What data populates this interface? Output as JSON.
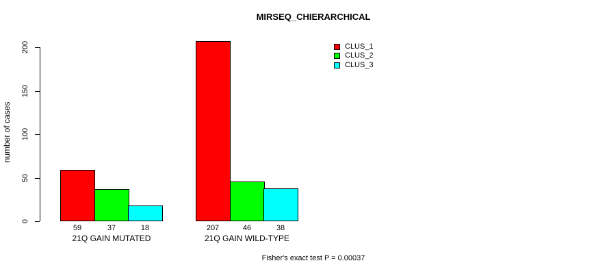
{
  "chart_data": {
    "type": "bar",
    "title": "MIRSEQ_CHIERARCHICAL",
    "xlabel": "",
    "ylabel": "number of cases",
    "ylim": [
      0,
      200
    ],
    "yticks": [
      0,
      50,
      100,
      150,
      200
    ],
    "grid": false,
    "legend_position": "top-right",
    "bar_border_color": "#000000",
    "categories": [
      "21Q GAIN MUTATED",
      "21Q GAIN WILD-TYPE"
    ],
    "series": [
      {
        "name": "CLUS_1",
        "color": "#FF0000",
        "values": [
          59,
          207
        ]
      },
      {
        "name": "CLUS_2",
        "color": "#00FF00",
        "values": [
          37,
          46
        ]
      },
      {
        "name": "CLUS_3",
        "color": "#00FFFF",
        "values": [
          18,
          38
        ]
      }
    ],
    "bar_value_labels": [
      [
        59,
        37,
        18
      ],
      [
        207,
        46,
        38
      ]
    ],
    "footnote": "Fisher's exact test P = 0.00037"
  }
}
